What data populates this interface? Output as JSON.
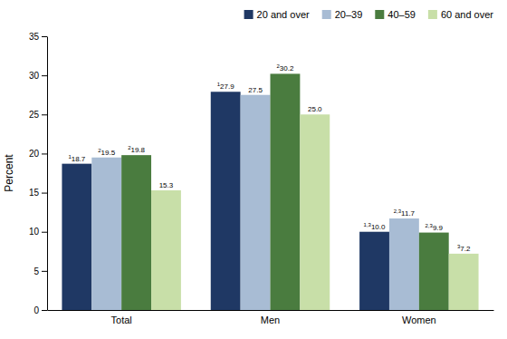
{
  "chart_data": {
    "type": "bar",
    "categories": [
      "Total",
      "Men",
      "Women"
    ],
    "series": [
      {
        "name": "20 and over",
        "color": "#1f3864",
        "values": [
          18.7,
          27.9,
          10.0
        ],
        "value_labels": [
          "18.7",
          "27.9",
          "10.0"
        ],
        "superscripts": [
          "1",
          "1",
          "1,3"
        ]
      },
      {
        "name": "20–39",
        "color": "#a8bcd4",
        "values": [
          19.5,
          27.5,
          11.7
        ],
        "value_labels": [
          "19.5",
          "27.5",
          "11.7"
        ],
        "superscripts": [
          "2",
          null,
          "2,3"
        ]
      },
      {
        "name": "40–59",
        "color": "#4a7c3f",
        "values": [
          19.8,
          30.2,
          9.9
        ],
        "value_labels": [
          "19.8",
          "30.2",
          "9.9"
        ],
        "superscripts": [
          "2",
          "2",
          "2,3"
        ]
      },
      {
        "name": "60 and over",
        "color": "#c8dfa8",
        "values": [
          15.3,
          25.0,
          7.2
        ],
        "value_labels": [
          "15.3",
          "25.0",
          "7.2"
        ],
        "superscripts": [
          null,
          null,
          "3"
        ]
      }
    ],
    "y_label": "Percent",
    "ylim": [
      0,
      35
    ],
    "yticks": [
      0,
      5,
      10,
      15,
      20,
      25,
      30,
      35
    ],
    "grid": false,
    "legend": "top-right",
    "data_labels": true
  }
}
